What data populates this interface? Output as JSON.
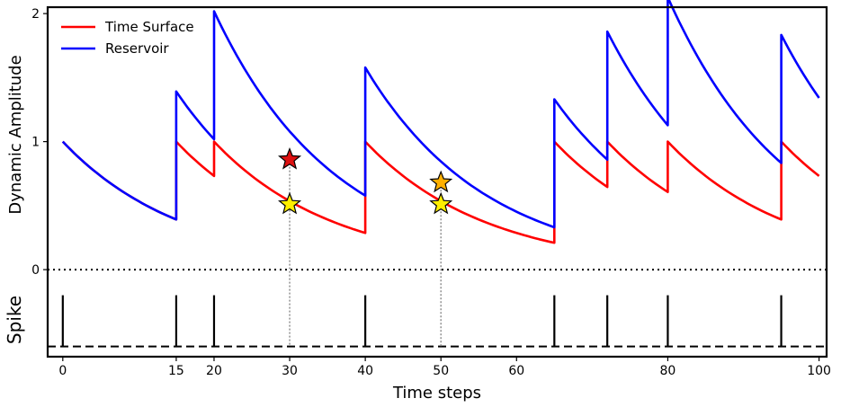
{
  "chart_data": {
    "type": "line",
    "xlabel": "Time steps",
    "ylabel": "Dynamic Amplitude",
    "spike_label": "Spike",
    "xlim": [
      -2,
      101
    ],
    "ylim": [
      -0.68,
      2.05
    ],
    "x_ticks": [
      0,
      15,
      20,
      30,
      40,
      50,
      60,
      80,
      100
    ],
    "x_tick_labels": [
      "0",
      "15",
      "20",
      "30",
      "40",
      "50",
      "60",
      "80",
      "100"
    ],
    "y_ticks": [
      0,
      1,
      2
    ],
    "y_tick_labels": [
      "0",
      "1",
      "2"
    ],
    "decay_tau": 16,
    "spike_times": [
      0,
      15,
      20,
      40,
      65,
      72,
      80,
      95
    ],
    "series": [
      {
        "name": "Time Surface",
        "color": "#ff0000",
        "mode": "reset"
      },
      {
        "name": "Reservoir",
        "color": "#0000ff",
        "mode": "accumulate"
      }
    ],
    "x_end": 100,
    "zero_line": 0,
    "spike_row": {
      "top": -0.2,
      "bottom": -0.6
    },
    "markers": [
      {
        "x": 30,
        "y": 0.86,
        "color": "#dd1111",
        "series": "Reservoir"
      },
      {
        "x": 30,
        "y": 0.51,
        "color": "#ffee00",
        "series": "Time Surface"
      },
      {
        "x": 50,
        "y": 0.68,
        "color": "#ffb000",
        "series": "Reservoir"
      },
      {
        "x": 50,
        "y": 0.51,
        "color": "#ffee00",
        "series": "Time Surface"
      }
    ],
    "guide_lines_x": [
      30,
      50
    ]
  }
}
